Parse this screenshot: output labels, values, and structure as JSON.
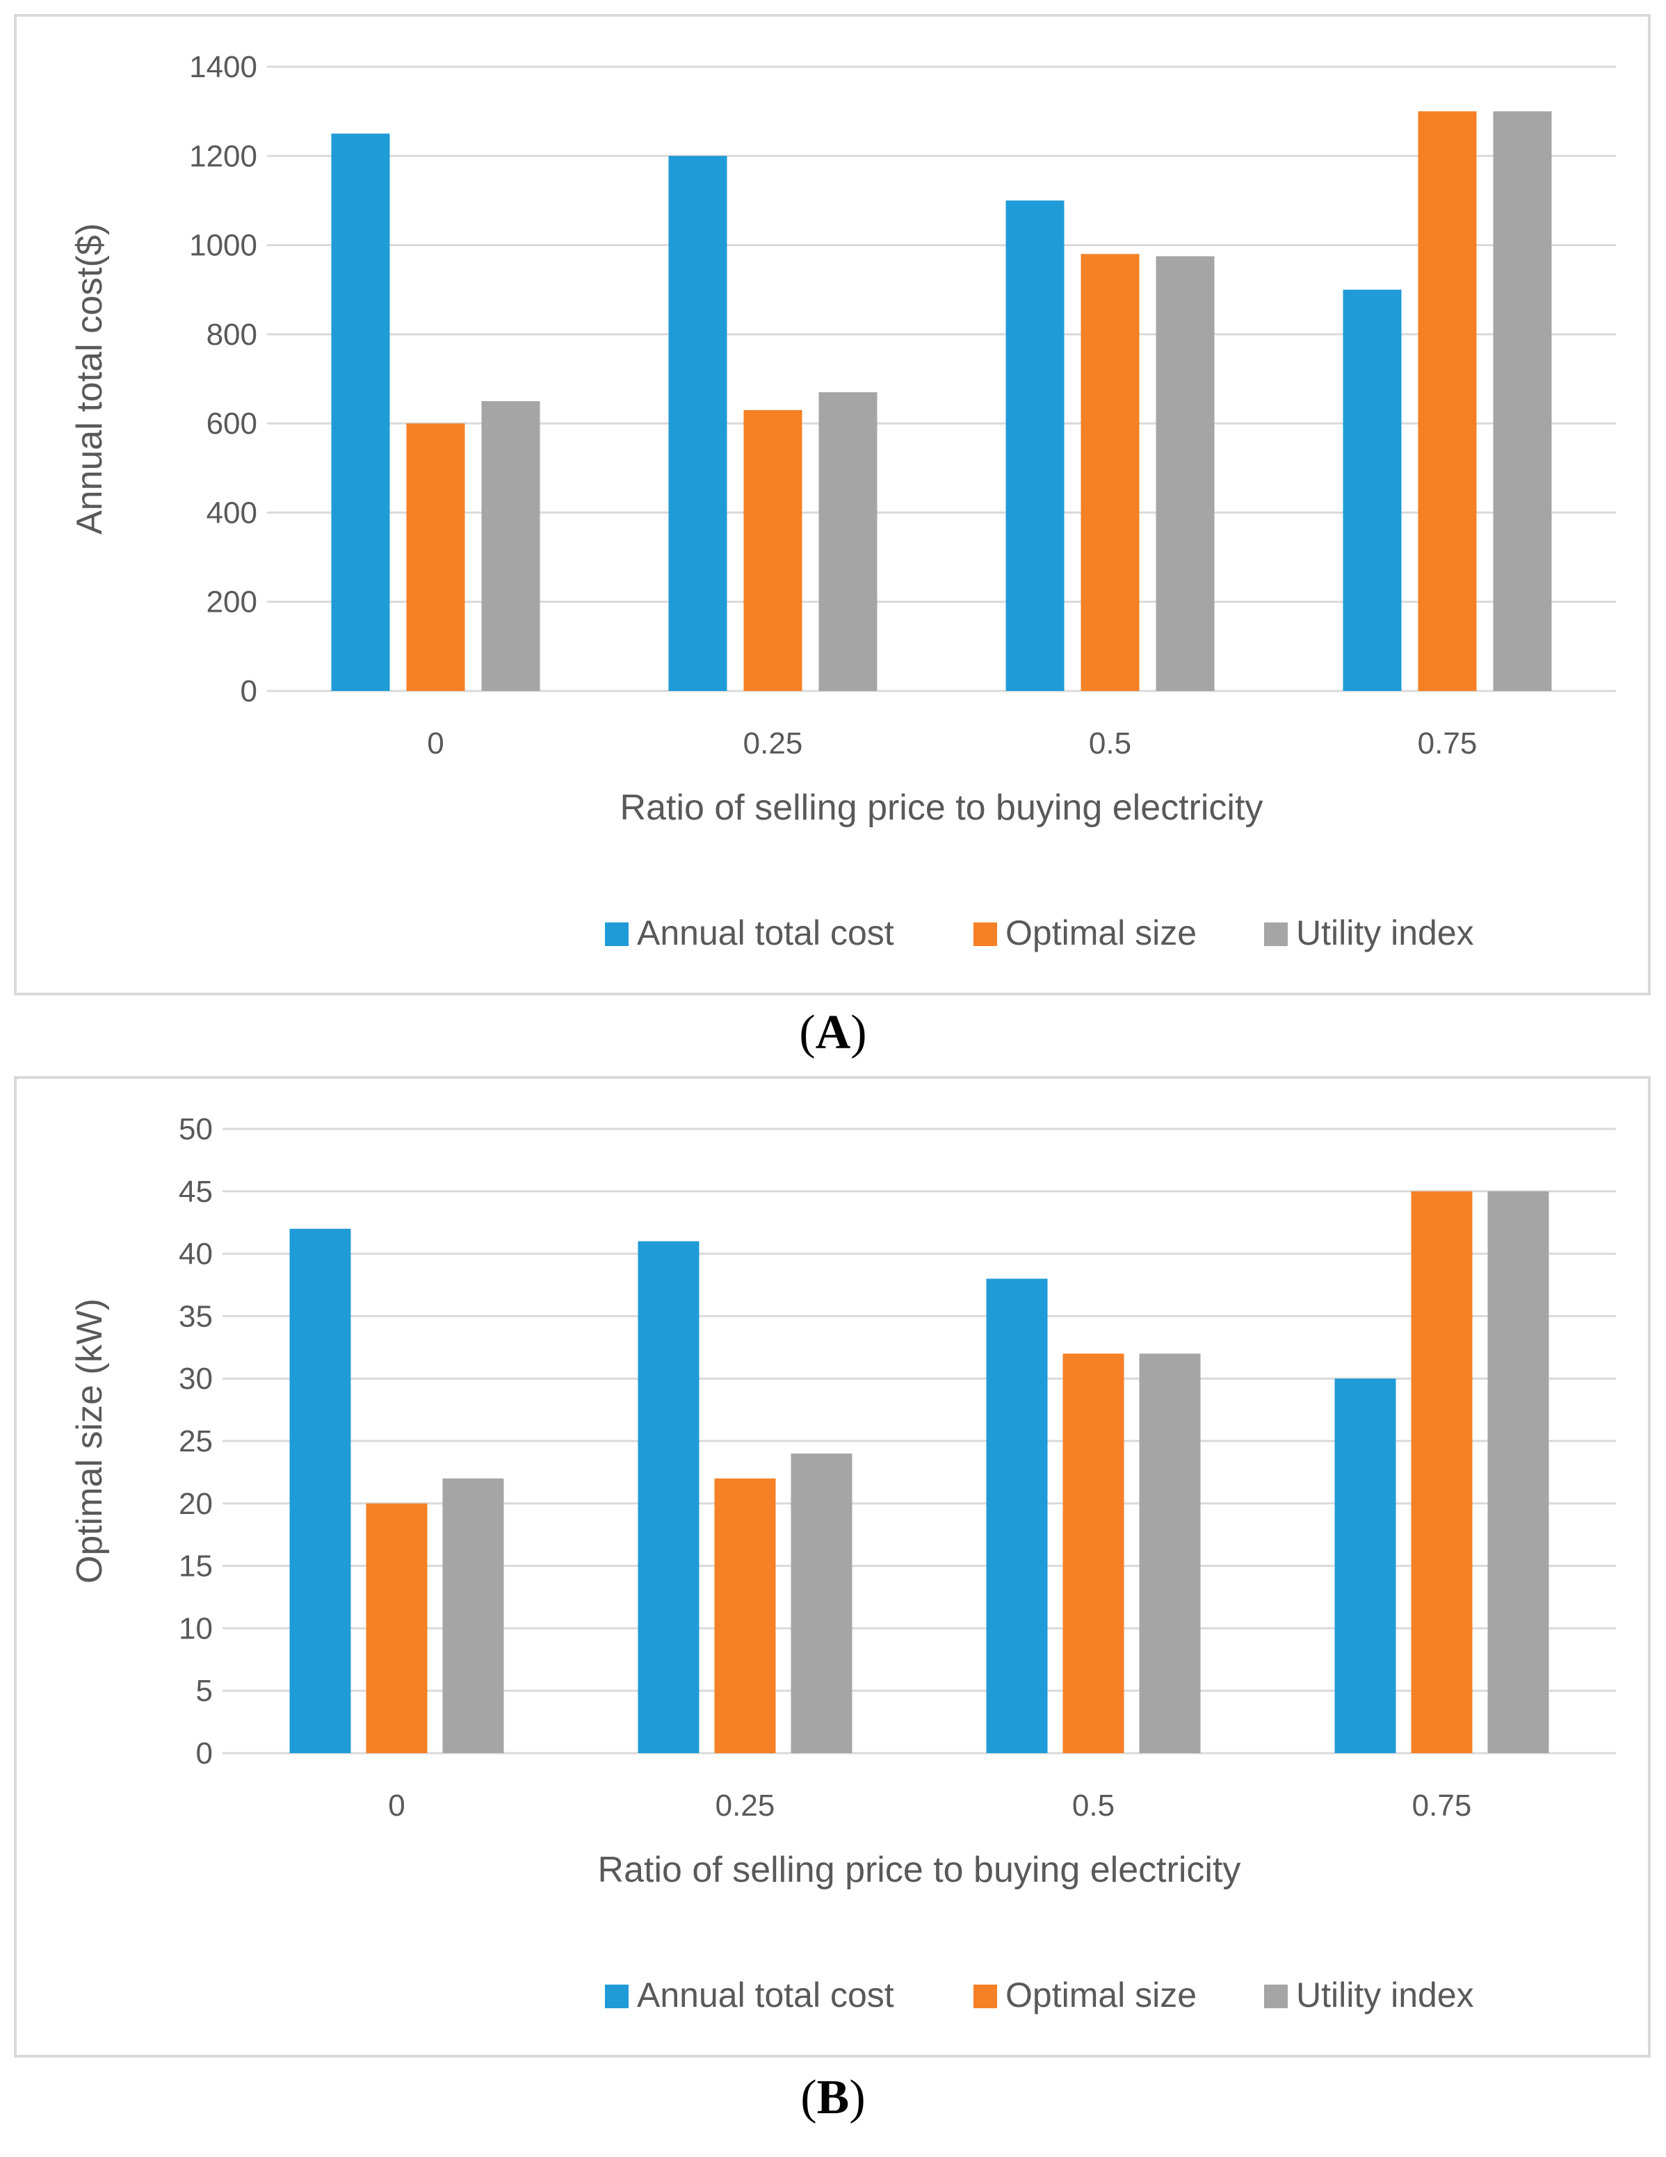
{
  "chart_data": [
    {
      "type": "bar",
      "panel_label": "A",
      "title": "",
      "xlabel": "Ratio of selling price to buying electricity",
      "ylabel": "Annual total cost($)",
      "categories": [
        "0",
        "0.25",
        "0.5",
        "0.75"
      ],
      "ylim": [
        0,
        1400
      ],
      "yticks": [
        0,
        200,
        400,
        600,
        800,
        1000,
        1200,
        1400
      ],
      "grid": true,
      "legend": "bottom",
      "series": [
        {
          "name": "Annual total cost",
          "color": "#1f9bd7",
          "values": [
            1250,
            1200,
            1100,
            900
          ]
        },
        {
          "name": "Optimal size",
          "color": "#f58025",
          "values": [
            600,
            630,
            980,
            1300
          ]
        },
        {
          "name": "Utility index",
          "color": "#a5a5a5",
          "values": [
            650,
            670,
            975,
            1300
          ]
        }
      ]
    },
    {
      "type": "bar",
      "panel_label": "B",
      "title": "",
      "xlabel": "Ratio of selling price to buying electricity",
      "ylabel": "Optimal size (kW)",
      "categories": [
        "0",
        "0.25",
        "0.5",
        "0.75"
      ],
      "ylim": [
        0,
        50
      ],
      "yticks": [
        0,
        5,
        10,
        15,
        20,
        25,
        30,
        35,
        40,
        45,
        50
      ],
      "grid": true,
      "legend": "bottom",
      "series": [
        {
          "name": "Annual total cost",
          "color": "#1f9bd7",
          "values": [
            42,
            41,
            38,
            30
          ]
        },
        {
          "name": "Optimal size",
          "color": "#f58025",
          "values": [
            20,
            22,
            32,
            45
          ]
        },
        {
          "name": "Utility index",
          "color": "#a5a5a5",
          "values": [
            22,
            24,
            32,
            45
          ]
        }
      ]
    }
  ]
}
